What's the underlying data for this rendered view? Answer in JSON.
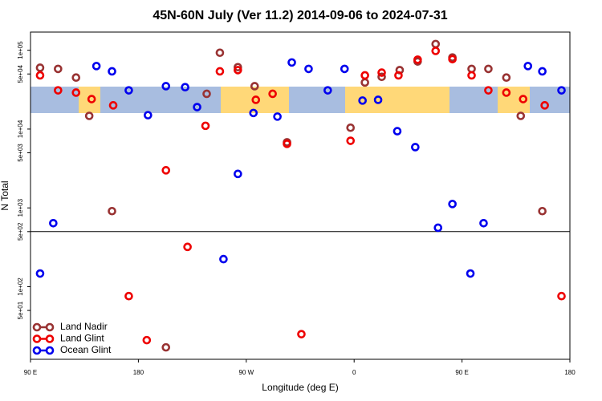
{
  "chart_data": {
    "type": "scatter",
    "title": "45N-60N July (Ver 11.2)   2014-09-06 to 2024-07-31",
    "x_label": "Longitude (deg E)",
    "y_label": "N Total",
    "log_y": true,
    "grid": false,
    "legend": "bottom-left",
    "xlim": [
      90,
      540
    ],
    "xticks": [
      {
        "value": 90,
        "label": "90 E"
      },
      {
        "value": 180,
        "label": "180"
      },
      {
        "value": 270,
        "label": "90 W"
      },
      {
        "value": 360,
        "label": "0"
      },
      {
        "value": 450,
        "label": "90 E"
      },
      {
        "value": 540,
        "label": "180"
      }
    ],
    "ylim": [
      12,
      170000
    ],
    "yticks": [
      {
        "value": 100000,
        "label": "1e+05"
      },
      {
        "value": 50000,
        "label": "5e+04"
      },
      {
        "value": 10000,
        "label": "1e+04"
      },
      {
        "value": 5000,
        "label": "5e+03"
      },
      {
        "value": 1000,
        "label": "1e+03"
      },
      {
        "value": 500,
        "label": "5e+02"
      },
      {
        "value": 100,
        "label": "1e+02"
      },
      {
        "value": 50,
        "label": "5e+01"
      }
    ],
    "hline": 500,
    "series": [
      {
        "name": "Land Nadir",
        "color": "#993333",
        "x": [
          98,
          113,
          128,
          139,
          158,
          203,
          237,
          248,
          263,
          277,
          304,
          357,
          369,
          383,
          398,
          413,
          428,
          442,
          458,
          472,
          487,
          499,
          517
        ],
        "values": [
          60000,
          58000,
          45000,
          14700,
          910,
          17,
          28000,
          93000,
          61000,
          35000,
          6800,
          10400,
          39000,
          46000,
          56000,
          72000,
          120000,
          81000,
          58000,
          58000,
          45000,
          14700,
          910
        ]
      },
      {
        "name": "Land Glint",
        "color": "#ee0000",
        "x": [
          98,
          113,
          128,
          141,
          159,
          172,
          187,
          203,
          221,
          236,
          248,
          263,
          278,
          292,
          304,
          316,
          357,
          369,
          383,
          397,
          413,
          428,
          442,
          458,
          472,
          487,
          501,
          519,
          533
        ],
        "values": [
          48000,
          31000,
          29000,
          24000,
          20000,
          76,
          21,
          3000,
          320,
          11000,
          54000,
          56000,
          23500,
          28000,
          6500,
          25,
          7100,
          48000,
          52000,
          48000,
          76000,
          98000,
          77000,
          48000,
          31000,
          29000,
          24000,
          20000,
          76
        ]
      },
      {
        "name": "Ocean Glint",
        "color": "#0000ee",
        "x": [
          98,
          109,
          145,
          158,
          172,
          188,
          203,
          219,
          229,
          251,
          263,
          276,
          296,
          308,
          322,
          338,
          352,
          367,
          380,
          396,
          411,
          430,
          442,
          457,
          468,
          505,
          517,
          533
        ],
        "values": [
          147,
          640,
          63000,
          54000,
          31000,
          15000,
          35000,
          34000,
          19000,
          224,
          2700,
          16000,
          14400,
          70000,
          58000,
          31000,
          58000,
          23000,
          23500,
          9400,
          5900,
          560,
          1120,
          147,
          640,
          63000,
          54000,
          31000
        ]
      }
    ]
  }
}
